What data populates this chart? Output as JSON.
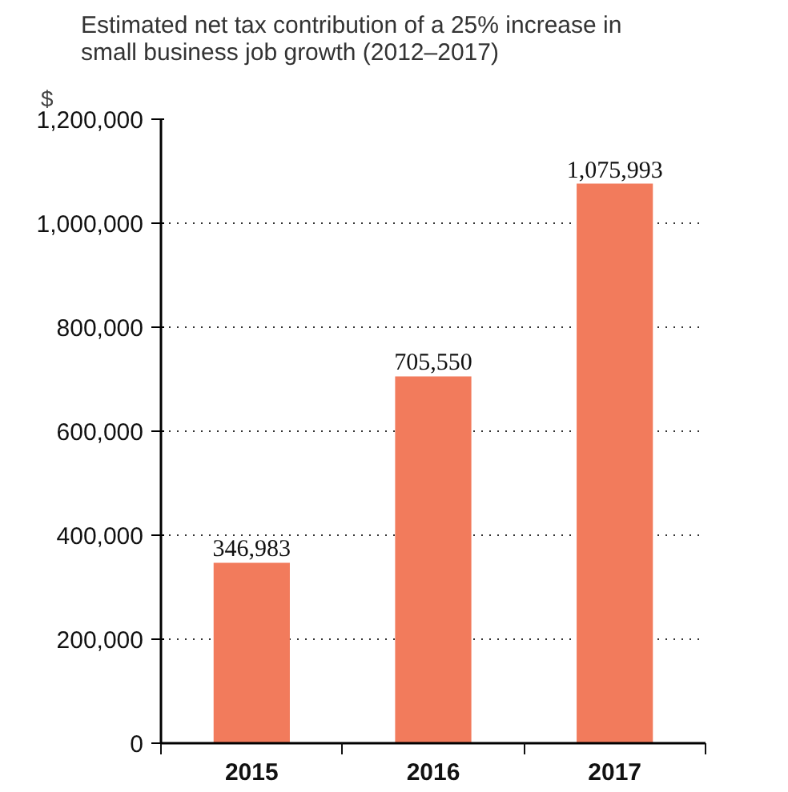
{
  "chart_data": {
    "type": "bar",
    "title": "Estimated net tax contribution of a 25% increase in small business job growth (2012–2017)",
    "ylabel": "$",
    "categories": [
      "2015",
      "2016",
      "2017"
    ],
    "values": [
      346983,
      705550,
      1075993
    ],
    "color": "#f27b5c",
    "ylim": [
      0,
      1200000
    ],
    "yticks": [
      {
        "value": 0,
        "label": "0"
      },
      {
        "value": 200000,
        "label": "200,000"
      },
      {
        "value": 400000,
        "label": "400,000"
      },
      {
        "value": 600000,
        "label": "600,000"
      },
      {
        "value": 800000,
        "label": "800,000"
      },
      {
        "value": 1000000,
        "label": "1,000,000"
      },
      {
        "value": 1200000,
        "label": "1,200,000"
      }
    ],
    "value_labels": [
      "346,983",
      "705,550",
      "1,075,993"
    ],
    "grid": "y"
  }
}
